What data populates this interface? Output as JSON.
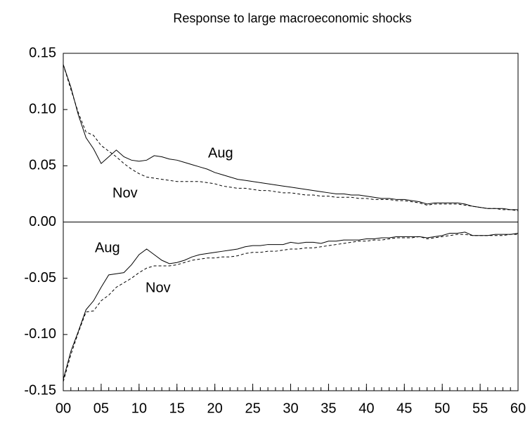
{
  "chart_data": {
    "type": "line",
    "title": "Response to large macroeconomic shocks",
    "x": [
      0,
      1,
      2,
      3,
      4,
      5,
      6,
      7,
      8,
      9,
      10,
      11,
      12,
      13,
      14,
      15,
      16,
      17,
      18,
      19,
      20,
      21,
      22,
      23,
      24,
      25,
      26,
      27,
      28,
      29,
      30,
      31,
      32,
      33,
      34,
      35,
      36,
      37,
      38,
      39,
      40,
      41,
      42,
      43,
      44,
      45,
      46,
      47,
      48,
      49,
      50,
      51,
      52,
      53,
      54,
      55,
      56,
      57,
      58,
      59,
      60
    ],
    "series": [
      {
        "name": "Aug",
        "color": "#000000",
        "dash": false,
        "values": [
          0.14,
          0.12,
          0.095,
          0.075,
          0.065,
          0.052,
          0.058,
          0.064,
          0.058,
          0.055,
          0.054,
          0.055,
          0.059,
          0.058,
          0.056,
          0.055,
          0.053,
          0.051,
          0.049,
          0.047,
          0.044,
          0.042,
          0.04,
          0.038,
          0.037,
          0.036,
          0.035,
          0.034,
          0.033,
          0.032,
          0.031,
          0.03,
          0.029,
          0.028,
          0.027,
          0.026,
          0.025,
          0.025,
          0.024,
          0.024,
          0.023,
          0.022,
          0.021,
          0.021,
          0.02,
          0.02,
          0.019,
          0.018,
          0.016,
          0.017,
          0.017,
          0.017,
          0.017,
          0.016,
          0.014,
          0.013,
          0.012,
          0.012,
          0.012,
          0.011,
          0.011
        ]
      },
      {
        "name": "Nov",
        "color": "#000000",
        "dash": true,
        "values": [
          0.14,
          0.118,
          0.097,
          0.08,
          0.077,
          0.068,
          0.063,
          0.058,
          0.052,
          0.047,
          0.043,
          0.04,
          0.039,
          0.038,
          0.037,
          0.036,
          0.036,
          0.036,
          0.036,
          0.035,
          0.034,
          0.032,
          0.031,
          0.03,
          0.03,
          0.029,
          0.028,
          0.028,
          0.027,
          0.026,
          0.026,
          0.025,
          0.024,
          0.024,
          0.023,
          0.023,
          0.022,
          0.022,
          0.022,
          0.021,
          0.021,
          0.02,
          0.02,
          0.02,
          0.019,
          0.019,
          0.018,
          0.017,
          0.015,
          0.016,
          0.016,
          0.016,
          0.016,
          0.015,
          0.014,
          0.013,
          0.012,
          0.012,
          0.011,
          0.011,
          0.01
        ]
      },
      {
        "name": "Aug",
        "color": "#000000",
        "dash": false,
        "values": [
          -0.14,
          -0.115,
          -0.097,
          -0.078,
          -0.07,
          -0.058,
          -0.047,
          -0.046,
          -0.045,
          -0.038,
          -0.029,
          -0.024,
          -0.029,
          -0.034,
          -0.037,
          -0.036,
          -0.034,
          -0.031,
          -0.029,
          -0.028,
          -0.027,
          -0.026,
          -0.025,
          -0.024,
          -0.022,
          -0.021,
          -0.021,
          -0.02,
          -0.02,
          -0.02,
          -0.018,
          -0.019,
          -0.018,
          -0.018,
          -0.019,
          -0.017,
          -0.017,
          -0.016,
          -0.016,
          -0.016,
          -0.015,
          -0.015,
          -0.014,
          -0.014,
          -0.013,
          -0.013,
          -0.013,
          -0.013,
          -0.014,
          -0.013,
          -0.012,
          -0.01,
          -0.01,
          -0.009,
          -0.012,
          -0.012,
          -0.012,
          -0.011,
          -0.011,
          -0.011,
          -0.01
        ]
      },
      {
        "name": "Nov",
        "color": "#000000",
        "dash": true,
        "values": [
          -0.142,
          -0.118,
          -0.098,
          -0.08,
          -0.079,
          -0.07,
          -0.065,
          -0.058,
          -0.054,
          -0.05,
          -0.045,
          -0.041,
          -0.039,
          -0.039,
          -0.039,
          -0.038,
          -0.036,
          -0.034,
          -0.033,
          -0.032,
          -0.032,
          -0.031,
          -0.031,
          -0.03,
          -0.028,
          -0.027,
          -0.027,
          -0.026,
          -0.026,
          -0.025,
          -0.024,
          -0.024,
          -0.023,
          -0.023,
          -0.022,
          -0.021,
          -0.02,
          -0.019,
          -0.018,
          -0.017,
          -0.017,
          -0.016,
          -0.016,
          -0.015,
          -0.014,
          -0.014,
          -0.014,
          -0.013,
          -0.015,
          -0.014,
          -0.013,
          -0.012,
          -0.011,
          -0.011,
          -0.012,
          -0.012,
          -0.012,
          -0.012,
          -0.012,
          -0.011,
          -0.011
        ]
      }
    ],
    "xlim": [
      0,
      60
    ],
    "xticks": [
      {
        "value": 0,
        "label": "00"
      },
      {
        "value": 5,
        "label": "05"
      },
      10,
      15,
      20,
      25,
      30,
      35,
      40,
      45,
      50,
      55,
      60
    ],
    "xminorticks": [
      0,
      1,
      2,
      3,
      4,
      5,
      6,
      7,
      8,
      9,
      10,
      11,
      12,
      13,
      14,
      15,
      16,
      17,
      18,
      19,
      20,
      21,
      22,
      23,
      24,
      25,
      26,
      27,
      28,
      29,
      30,
      31,
      32,
      33,
      34,
      35,
      36,
      37,
      38,
      39,
      40,
      41,
      42,
      43,
      44,
      45,
      46,
      47,
      48,
      49,
      50,
      51,
      52,
      53,
      54,
      55,
      56,
      57,
      58,
      59,
      60
    ],
    "ylim": [
      -0.15,
      0.15
    ],
    "yticks": [
      0.15,
      {
        "value": 0.1,
        "label": "0.10"
      },
      0.05,
      {
        "value": 0,
        "label": "0.00"
      },
      -0.05,
      {
        "value": -0.1,
        "label": "-0.10"
      },
      -0.15
    ],
    "zero_line": true,
    "grid": false
  }
}
